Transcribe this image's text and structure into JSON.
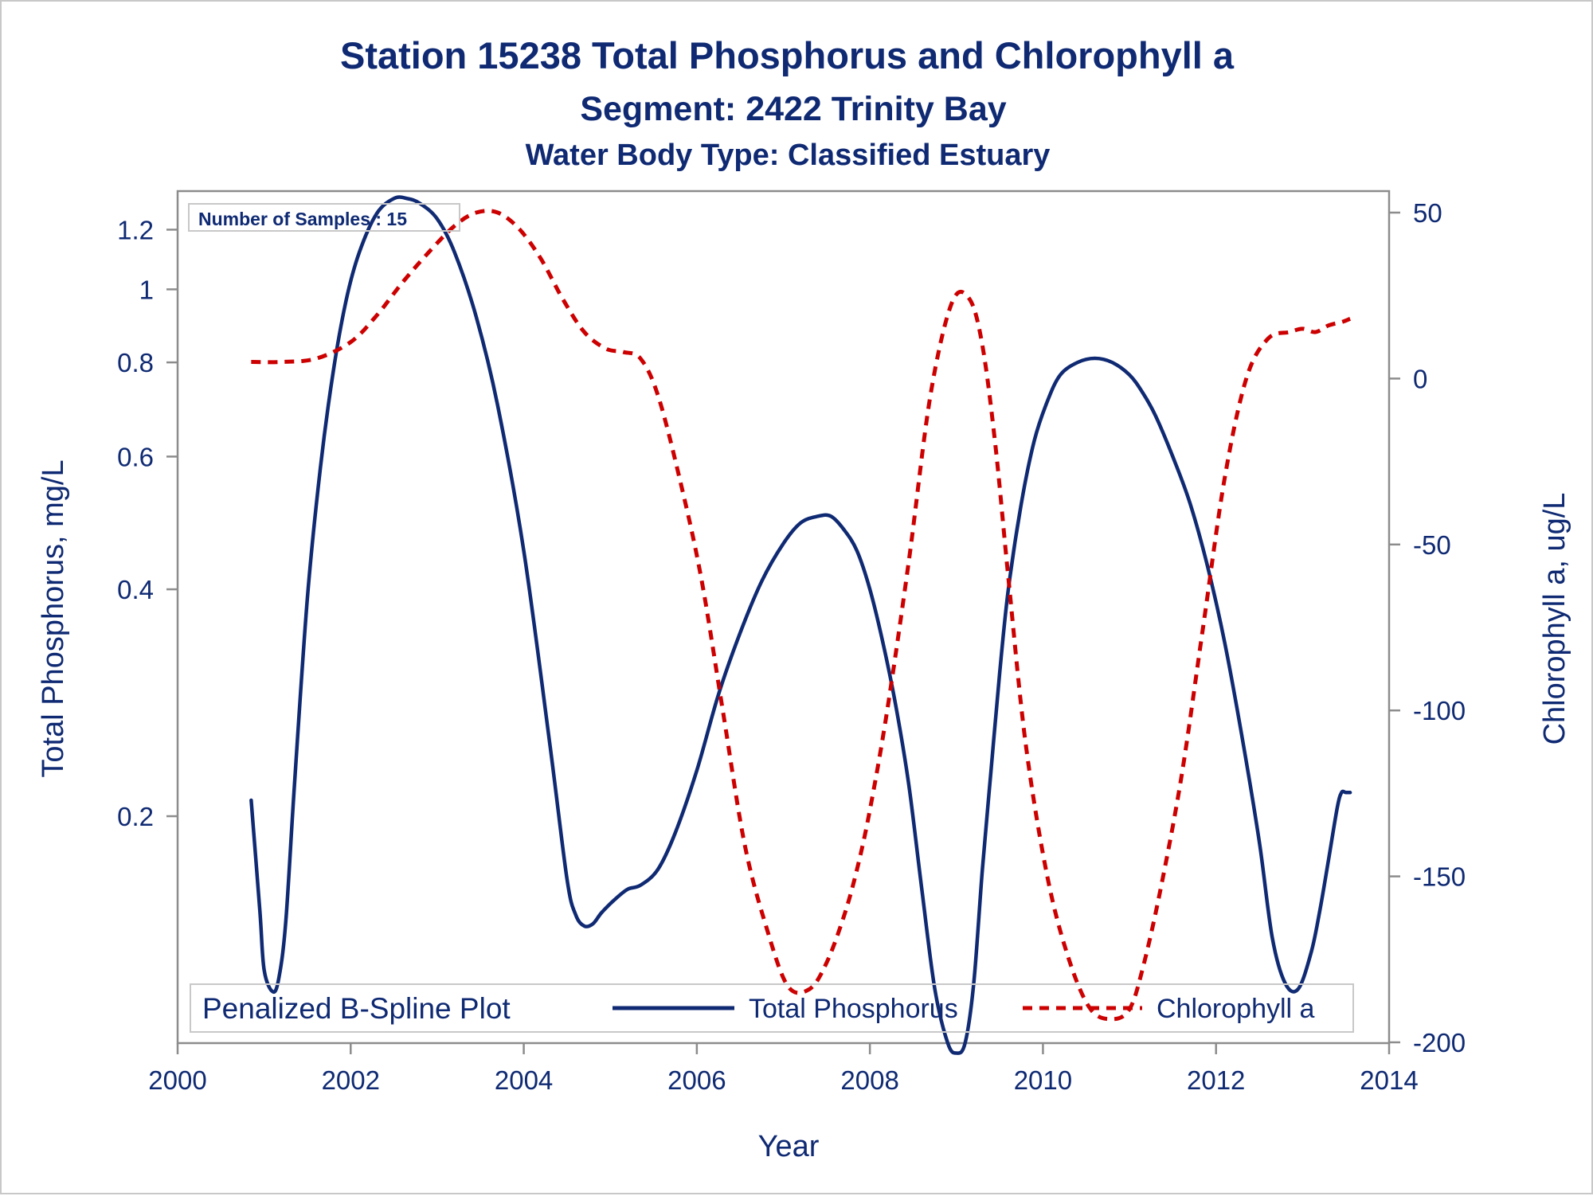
{
  "chart_data": {
    "type": "line",
    "title": "Station 15238  Total Phosphorus and Chlorophyll a",
    "subtitle": "Segment: 2422  Trinity Bay",
    "subtitle2": "Water Body Type: Classified Estuary",
    "xlabel": "Year",
    "ylabel": "Total Phosphorus, mg/L",
    "y2label": "Chlorophyll a, ug/L",
    "xlim": [
      2000,
      2014
    ],
    "xticks": [
      "2000",
      "2002",
      "2004",
      "2006",
      "2008",
      "2010",
      "2012",
      "2014"
    ],
    "ylim": [
      0.1,
      1.35
    ],
    "yscale": "log",
    "yticks": [
      "0.2",
      "0.4",
      "0.6",
      "0.8",
      "1",
      "1.2"
    ],
    "y2lim": [
      -200,
      50
    ],
    "y2ticks": [
      "-200",
      "-150",
      "-100",
      "-50",
      "0",
      "50"
    ],
    "grid": false,
    "inset_label": "Number of Samples : 15",
    "legend": {
      "title": "Penalized B-Spline Plot",
      "position": "bottom-inside",
      "entries": [
        "Total Phosphorus",
        "Chlorophyll a"
      ]
    },
    "series": [
      {
        "name": "Total Phosphorus",
        "axis": "left",
        "color": "#0f2a73",
        "style": "solid",
        "x": [
          2000.85,
          2000.95,
          2001.0,
          2001.1,
          2001.17,
          2001.25,
          2001.35,
          2001.5,
          2001.65,
          2001.8,
          2001.95,
          2002.1,
          2002.3,
          2002.5,
          2002.65,
          2002.8,
          2003.0,
          2003.2,
          2003.45,
          2003.7,
          2004.0,
          2004.3,
          2004.5,
          2004.6,
          2004.7,
          2004.8,
          2004.9,
          2005.05,
          2005.2,
          2005.35,
          2005.55,
          2005.75,
          2006.0,
          2006.25,
          2006.5,
          2006.75,
          2007.0,
          2007.2,
          2007.4,
          2007.55,
          2007.7,
          2007.85,
          2008.0,
          2008.15,
          2008.3,
          2008.45,
          2008.6,
          2008.75,
          2008.9,
          2009.0,
          2009.1,
          2009.2,
          2009.3,
          2009.4,
          2009.5,
          2009.6,
          2009.75,
          2009.9,
          2010.05,
          2010.2,
          2010.4,
          2010.6,
          2010.8,
          2011.0,
          2011.15,
          2011.3,
          2011.5,
          2011.7,
          2011.9,
          2012.1,
          2012.3,
          2012.5,
          2012.65,
          2012.8,
          2012.95,
          2013.1,
          2013.2,
          2013.3,
          2013.4,
          2013.45,
          2013.5,
          2013.55
        ],
        "values": [
          0.21,
          0.15,
          0.125,
          0.117,
          0.122,
          0.145,
          0.22,
          0.39,
          0.58,
          0.78,
          0.97,
          1.12,
          1.26,
          1.32,
          1.32,
          1.3,
          1.24,
          1.12,
          0.92,
          0.7,
          0.45,
          0.25,
          0.165,
          0.148,
          0.143,
          0.144,
          0.149,
          0.155,
          0.16,
          0.162,
          0.17,
          0.19,
          0.23,
          0.29,
          0.35,
          0.41,
          0.46,
          0.49,
          0.5,
          0.5,
          0.48,
          0.45,
          0.4,
          0.34,
          0.28,
          0.22,
          0.16,
          0.118,
          0.1,
          0.097,
          0.1,
          0.12,
          0.17,
          0.23,
          0.31,
          0.4,
          0.52,
          0.63,
          0.71,
          0.77,
          0.8,
          0.81,
          0.8,
          0.77,
          0.73,
          0.68,
          0.6,
          0.52,
          0.43,
          0.34,
          0.255,
          0.185,
          0.138,
          0.12,
          0.118,
          0.132,
          0.15,
          0.175,
          0.205,
          0.215,
          0.215,
          0.215
        ],
        "values_note": ""
      },
      {
        "name": "Chlorophyll a",
        "axis": "right",
        "color": "#cc0000",
        "style": "dashed",
        "x": [
          2000.85,
          2001.2,
          2001.6,
          2002.0,
          2002.3,
          2002.6,
          2002.9,
          2003.2,
          2003.45,
          2003.7,
          2003.95,
          2004.2,
          2004.45,
          2004.7,
          2004.95,
          2005.15,
          2005.35,
          2005.55,
          2005.8,
          2006.05,
          2006.3,
          2006.55,
          2006.8,
          2007.05,
          2007.3,
          2007.5,
          2007.7,
          2007.85,
          2008.0,
          2008.2,
          2008.45,
          2008.7,
          2008.95,
          2009.15,
          2009.3,
          2009.45,
          2009.6,
          2009.8,
          2010.05,
          2010.3,
          2010.55,
          2010.8,
          2011.0,
          2011.15,
          2011.35,
          2011.6,
          2011.85,
          2012.1,
          2012.35,
          2012.6,
          2012.85,
          2013.0,
          2013.15,
          2013.3,
          2013.45,
          2013.55
        ],
        "values": [
          5,
          5,
          6,
          11,
          19,
          29,
          38,
          46,
          50,
          50,
          45,
          36,
          24,
          14,
          9,
          8,
          6,
          -5,
          -30,
          -60,
          -100,
          -140,
          -165,
          -183,
          -184,
          -176,
          -162,
          -148,
          -130,
          -100,
          -55,
          -5,
          23,
          24,
          10,
          -20,
          -60,
          -110,
          -150,
          -175,
          -190,
          -193,
          -190,
          -178,
          -155,
          -120,
          -75,
          -30,
          0,
          12,
          14,
          15,
          14,
          16,
          17,
          18
        ]
      }
    ]
  }
}
